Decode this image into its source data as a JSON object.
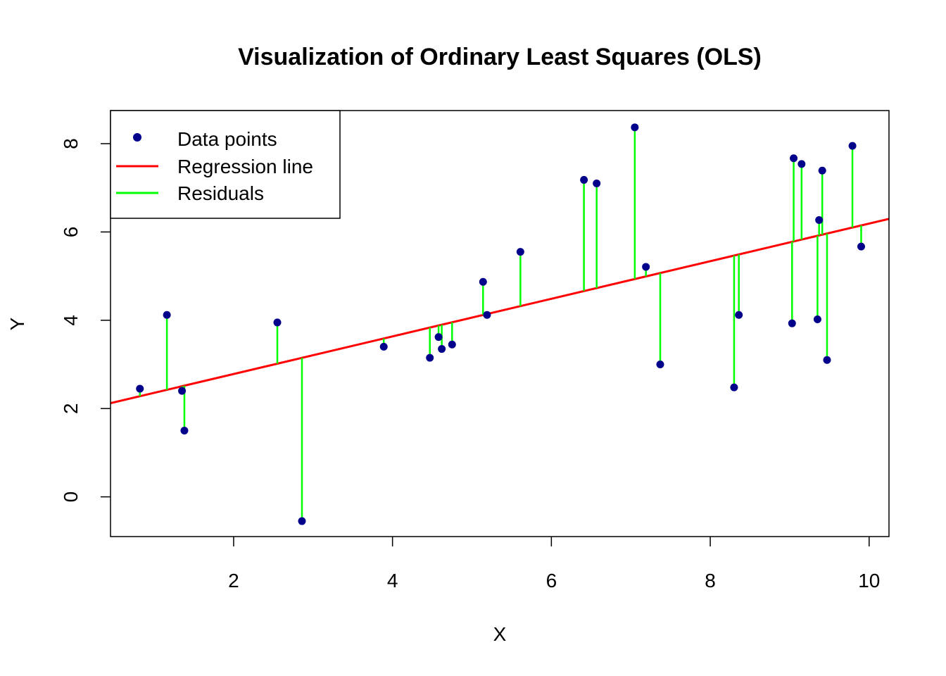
{
  "chart_data": {
    "type": "scatter",
    "title": "Visualization of Ordinary Least Squares (OLS)",
    "xlabel": "X",
    "ylabel": "Y",
    "xlim": [
      0.45,
      10.25
    ],
    "ylim": [
      -0.9,
      8.75
    ],
    "xticks": [
      2,
      4,
      6,
      8,
      10
    ],
    "yticks": [
      0,
      2,
      4,
      6,
      8
    ],
    "grid": false,
    "legend": {
      "placement": "top-left",
      "entries": [
        {
          "label": "Data points",
          "kind": "point",
          "color": "#00008B"
        },
        {
          "label": "Regression line",
          "kind": "line",
          "color": "#FF0000"
        },
        {
          "label": "Residuals",
          "kind": "line",
          "color": "#00FF00"
        }
      ]
    },
    "regression": {
      "intercept": 1.93,
      "slope": 0.426,
      "color": "#FF0000"
    },
    "point_color": "#00008B",
    "residual_color": "#00FF00",
    "series": [
      {
        "x": [
          0.82,
          1.16,
          1.35,
          1.38,
          2.55,
          2.86,
          3.89,
          4.47,
          4.58,
          4.62,
          4.75,
          5.14,
          5.19,
          5.61,
          6.41,
          6.57,
          7.05,
          7.19,
          7.37,
          8.3,
          8.36,
          9.03,
          9.05,
          9.15,
          9.35,
          9.37,
          9.41,
          9.47,
          9.79,
          9.9
        ],
        "y": [
          2.45,
          4.12,
          2.4,
          1.5,
          3.95,
          -0.55,
          3.4,
          3.15,
          3.62,
          3.35,
          3.45,
          4.87,
          4.12,
          5.55,
          7.18,
          7.1,
          8.37,
          5.21,
          3.0,
          2.48,
          4.12,
          3.93,
          7.67,
          7.54,
          4.02,
          6.27,
          7.39,
          3.1,
          7.95,
          5.67
        ]
      }
    ]
  }
}
